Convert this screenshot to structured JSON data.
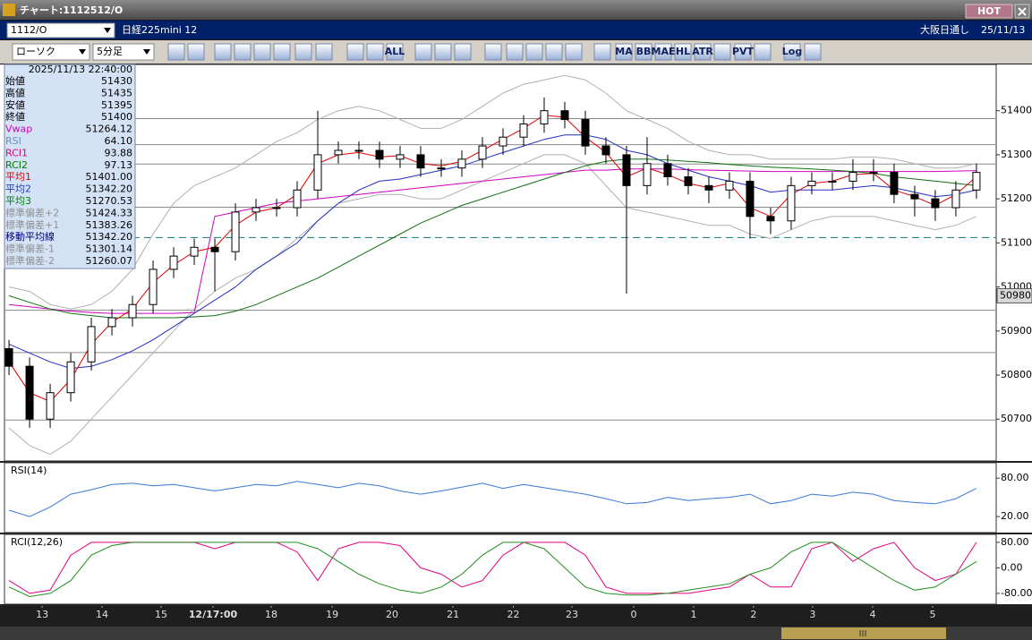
{
  "window": {
    "title": "チャート:1112512/O",
    "hot": "HOT",
    "symbol": "1112/O",
    "instrument": "日経225mini 12",
    "session": "大阪日通し",
    "date": "25/11/13",
    "chart_style": "ローソク",
    "timeframe": "5分足",
    "toolbar_labels": [
      "ALL",
      "MA",
      "BB",
      "MAE",
      "HL",
      "ATR",
      "PVT",
      "Log"
    ]
  },
  "info_panel": {
    "datetime": "2025/11/13 22:40:00",
    "rows": [
      {
        "label": "始値",
        "value": "51430",
        "color": "#000000"
      },
      {
        "label": "高値",
        "value": "51435",
        "color": "#000000"
      },
      {
        "label": "安値",
        "value": "51395",
        "color": "#000000"
      },
      {
        "label": "終値",
        "value": "51400",
        "color": "#000000"
      },
      {
        "label": "Vwap",
        "value": "51264.12",
        "color": "#d000c0"
      },
      {
        "label": "RSI",
        "value": "64.10",
        "color": "#6a8fc0"
      },
      {
        "label": "RCI1",
        "value": "93.88",
        "color": "#e0007f"
      },
      {
        "label": "RCI2",
        "value": "97.13",
        "color": "#008000"
      },
      {
        "label": "平均1",
        "value": "51401.00",
        "color": "#e00000"
      },
      {
        "label": "平均2",
        "value": "51342.20",
        "color": "#2040c0"
      },
      {
        "label": "平均3",
        "value": "51270.53",
        "color": "#008000"
      },
      {
        "label": "標準偏差+2",
        "value": "51424.33",
        "color": "#909090"
      },
      {
        "label": "標準偏差+1",
        "value": "51383.26",
        "color": "#909090"
      },
      {
        "label": "移動平均線",
        "value": "51342.20",
        "color": "#000080"
      },
      {
        "label": "標準偏差-1",
        "value": "51301.14",
        "color": "#909090"
      },
      {
        "label": "標準偏差-2",
        "value": "51260.07",
        "color": "#909090"
      }
    ]
  },
  "chart_data": [
    {
      "type": "candlestick",
      "xlim": [
        -0.22,
        47.96
      ],
      "ylim": [
        50605,
        51505
      ],
      "yticks": [
        50700,
        50800,
        50900,
        51000,
        51100,
        51200,
        51300,
        51400
      ],
      "xticks": [
        {
          "value": 1.61,
          "label": "13"
        },
        {
          "value": 4.52,
          "label": "14"
        },
        {
          "value": 7.39,
          "label": "15"
        },
        {
          "value": 9.91,
          "label": "12/17:00",
          "bold": true
        },
        {
          "value": 12.74,
          "label": "18"
        },
        {
          "value": 15.7,
          "label": "19"
        },
        {
          "value": 18.61,
          "label": "20"
        },
        {
          "value": 21.57,
          "label": "21"
        },
        {
          "value": 24.5,
          "label": "22"
        },
        {
          "value": 27.35,
          "label": "23"
        },
        {
          "value": 30.35,
          "label": "0"
        },
        {
          "value": 33.26,
          "label": "1"
        },
        {
          "value": 36.17,
          "label": "2"
        },
        {
          "value": 39.04,
          "label": "3"
        },
        {
          "value": 41.96,
          "label": "4"
        },
        {
          "value": 44.87,
          "label": "5"
        }
      ],
      "hlines": [
        51382,
        51323,
        51279,
        51181,
        50947,
        50851,
        50698
      ],
      "ref_line": {
        "value": 51112,
        "color": "#2a8a8a"
      },
      "last_price": 50980,
      "up_color": "#ffffff",
      "down_color": "#000000",
      "open": [
        50860,
        50820,
        50700,
        50760,
        50830,
        50910,
        50930,
        50960,
        51040,
        51070,
        51090,
        51080,
        51170,
        51180,
        51180,
        51220,
        51300,
        51310,
        51310,
        51290,
        51300,
        51270,
        51270,
        51290,
        51320,
        51340,
        51370,
        51400,
        51380,
        51320,
        51300,
        51230,
        51280,
        51250,
        51230,
        51220,
        51240,
        51160,
        51150,
        51230,
        51240,
        51240,
        51260,
        51260,
        51210,
        51200,
        51180,
        51220
      ],
      "high": [
        50880,
        50840,
        50780,
        50850,
        50930,
        50950,
        50980,
        51060,
        51090,
        51110,
        51110,
        51190,
        51200,
        51200,
        51240,
        51400,
        51330,
        51330,
        51330,
        51320,
        51320,
        51290,
        51310,
        51340,
        51360,
        51390,
        51430,
        51420,
        51400,
        51340,
        51320,
        51340,
        51300,
        51270,
        51250,
        51260,
        51260,
        51180,
        51250,
        51260,
        51260,
        51290,
        51290,
        51280,
        51230,
        51220,
        51240,
        51280
      ],
      "low": [
        50800,
        50680,
        50680,
        50740,
        50810,
        50890,
        50910,
        50940,
        51020,
        51050,
        50990,
        51060,
        51150,
        51160,
        51160,
        51200,
        51280,
        51290,
        51270,
        51270,
        51250,
        51250,
        51250,
        51270,
        51300,
        51320,
        51350,
        51360,
        51300,
        51280,
        50985,
        51210,
        51230,
        51210,
        51190,
        51200,
        51110,
        51120,
        51130,
        51210,
        51220,
        51220,
        51240,
        51190,
        51160,
        51150,
        51160,
        51200
      ],
      "close": [
        50820,
        50700,
        50760,
        50830,
        50910,
        50930,
        50960,
        51040,
        51070,
        51090,
        51080,
        51170,
        51180,
        51180,
        51220,
        51300,
        51310,
        51310,
        51290,
        51300,
        51270,
        51270,
        51290,
        51320,
        51340,
        51370,
        51400,
        51380,
        51320,
        51300,
        51230,
        51280,
        51250,
        51230,
        51220,
        51240,
        51160,
        51150,
        51230,
        51240,
        51240,
        51260,
        51260,
        51210,
        51200,
        51180,
        51220,
        51260
      ],
      "series": [
        {
          "color": "#b0b0b0",
          "values": [
            51000,
            50990,
            50960,
            50950,
            50960,
            50990,
            51040,
            51120,
            51190,
            51230,
            51250,
            51270,
            51300,
            51330,
            51350,
            51380,
            51400,
            51410,
            51400,
            51380,
            51360,
            51360,
            51380,
            51410,
            51440,
            51460,
            51470,
            51480,
            51470,
            51440,
            51400,
            51380,
            51360,
            51330,
            51310,
            51300,
            51300,
            51290,
            51290,
            51290,
            51290,
            51295,
            51295,
            51290,
            51280,
            51270,
            51270,
            51280
          ]
        },
        {
          "color": "#b0b0b0",
          "values": [
            50680,
            50640,
            50620,
            50650,
            50700,
            50750,
            50800,
            50850,
            50900,
            50950,
            50990,
            51020,
            51040,
            51070,
            51110,
            51150,
            51190,
            51200,
            51210,
            51210,
            51200,
            51200,
            51220,
            51240,
            51260,
            51280,
            51300,
            51300,
            51280,
            51230,
            51180,
            51170,
            51160,
            51150,
            51140,
            51140,
            51120,
            51110,
            51130,
            51150,
            51160,
            51160,
            51160,
            51150,
            51140,
            51130,
            51140,
            51160
          ]
        },
        {
          "color": "#d000c0",
          "values": [
            50960,
            50955,
            50950,
            50945,
            50942,
            50940,
            50940,
            50940,
            50940,
            50942,
            51160,
            51170,
            51180,
            51190,
            51195,
            51200,
            51205,
            51210,
            51215,
            51220,
            51225,
            51230,
            51235,
            51240,
            51245,
            51250,
            51255,
            51260,
            51265,
            51265,
            51268,
            51268,
            51268,
            51266,
            51265,
            51264,
            51263,
            51262,
            51262,
            51262,
            51262,
            51262,
            51262,
            51262,
            51262,
            51262,
            51263,
            51264
          ]
        },
        {
          "color": "#107010",
          "values": [
            50980,
            50965,
            50950,
            50940,
            50935,
            50930,
            50930,
            50930,
            50930,
            50932,
            50935,
            50945,
            50960,
            50980,
            51000,
            51020,
            51045,
            51070,
            51095,
            51120,
            51145,
            51165,
            51185,
            51200,
            51215,
            51230,
            51245,
            51260,
            51275,
            51285,
            51290,
            51290,
            51288,
            51285,
            51282,
            51278,
            51275,
            51272,
            51270,
            51268,
            51265,
            51262,
            51258,
            51250,
            51245,
            51240,
            51235,
            51230
          ]
        },
        {
          "color": "#2030c0",
          "values": [
            50870,
            50850,
            50830,
            50815,
            50820,
            50835,
            50855,
            50880,
            50910,
            50940,
            50970,
            51000,
            51040,
            51070,
            51100,
            51150,
            51190,
            51220,
            51240,
            51245,
            51255,
            51265,
            51275,
            51290,
            51305,
            51320,
            51335,
            51345,
            51345,
            51335,
            51310,
            51300,
            51280,
            51265,
            51250,
            51240,
            51230,
            51215,
            51220,
            51220,
            51220,
            51225,
            51230,
            51225,
            51215,
            51205,
            51210,
            51220
          ]
        },
        {
          "color": "#e00000",
          "values": [
            50830,
            50760,
            50740,
            50790,
            50870,
            50920,
            50950,
            51010,
            51050,
            51080,
            51090,
            51140,
            51170,
            51180,
            51210,
            51280,
            51300,
            51305,
            51295,
            51298,
            51280,
            51275,
            51285,
            51310,
            51335,
            51360,
            51390,
            51385,
            51340,
            51305,
            51250,
            51270,
            51255,
            51235,
            51225,
            51235,
            51180,
            51160,
            51210,
            51235,
            51240,
            51255,
            51258,
            51220,
            51205,
            51185,
            51210,
            51250
          ]
        }
      ]
    },
    {
      "type": "line",
      "title": "RSI(14)",
      "xlim": [
        -0.22,
        47.96
      ],
      "ylim": [
        -5,
        104
      ],
      "yticks": [
        {
          "value": 80,
          "label": "80.00"
        },
        {
          "value": 20,
          "label": "20.00"
        }
      ],
      "series": [
        {
          "color": "#3a78d8",
          "values": [
            30,
            20,
            35,
            55,
            62,
            70,
            72,
            68,
            70,
            65,
            60,
            65,
            70,
            68,
            75,
            70,
            65,
            72,
            68,
            60,
            55,
            60,
            66,
            72,
            64,
            70,
            65,
            60,
            55,
            48,
            40,
            42,
            50,
            45,
            48,
            50,
            55,
            40,
            45,
            55,
            52,
            58,
            55,
            45,
            42,
            40,
            48,
            64
          ]
        }
      ]
    },
    {
      "type": "line",
      "title": "RCI(12,26)",
      "xlim": [
        -0.22,
        47.96
      ],
      "ylim": [
        -114,
        105
      ],
      "yticks": [
        {
          "value": 80,
          "label": "80.00"
        },
        {
          "value": 0,
          "label": "0.00"
        },
        {
          "value": -80,
          "label": "-80.00"
        }
      ],
      "series": [
        {
          "color": "#e0007f",
          "values": [
            -40,
            -80,
            -70,
            40,
            80,
            80,
            80,
            80,
            80,
            80,
            60,
            80,
            80,
            80,
            50,
            -40,
            60,
            80,
            80,
            70,
            0,
            -20,
            -60,
            -40,
            40,
            80,
            80,
            80,
            40,
            -60,
            -80,
            -80,
            -80,
            -80,
            -70,
            -60,
            -20,
            -60,
            -60,
            60,
            80,
            20,
            60,
            80,
            0,
            -40,
            -20,
            80
          ]
        },
        {
          "color": "#209020",
          "values": [
            -60,
            -90,
            -80,
            -40,
            40,
            70,
            80,
            80,
            80,
            80,
            80,
            80,
            80,
            80,
            80,
            60,
            20,
            -20,
            -50,
            -70,
            -80,
            -60,
            -20,
            40,
            80,
            80,
            60,
            0,
            -60,
            -80,
            -85,
            -85,
            -80,
            -70,
            -60,
            -50,
            -20,
            0,
            50,
            80,
            80,
            40,
            0,
            -40,
            -70,
            -60,
            -20,
            20
          ]
        }
      ]
    }
  ]
}
